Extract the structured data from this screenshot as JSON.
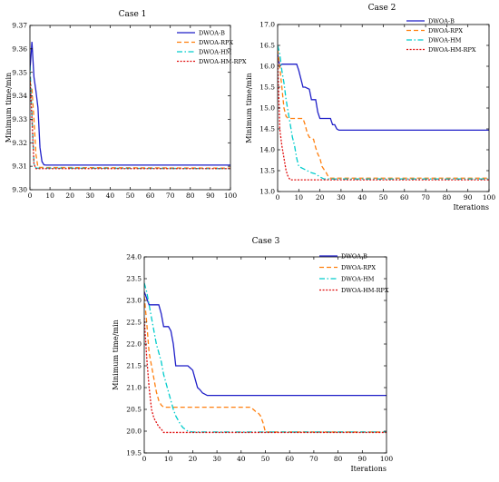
{
  "chart_data": [
    {
      "type": "line",
      "title": "Case 1",
      "xlabel": "",
      "ylabel": "Minimum time/min",
      "xlim": [
        0,
        100
      ],
      "ylim": [
        9.3,
        9.37
      ],
      "xticks": [
        0,
        10,
        20,
        30,
        40,
        50,
        60,
        70,
        80,
        90,
        100
      ],
      "yticks": [
        9.3,
        9.31,
        9.32,
        9.33,
        9.34,
        9.35,
        9.36,
        9.37
      ],
      "ytick_labels": [
        "9.30",
        "9.31",
        "9.32",
        "9.33",
        "9.34",
        "9.35",
        "9.36",
        "9.37"
      ],
      "grid": false,
      "legend": "top-right",
      "series": [
        {
          "name": "DWOA-B",
          "color": "#1f1fc8",
          "dash": "solid",
          "x": [
            0,
            1,
            2,
            3,
            4,
            5,
            6,
            7,
            8,
            100
          ],
          "y": [
            9.351,
            9.363,
            9.348,
            9.342,
            9.335,
            9.318,
            9.312,
            9.3106,
            9.3105,
            9.3105
          ]
        },
        {
          "name": "DWOA-RPX",
          "color": "#ff7f0e",
          "dash": "dashed",
          "x": [
            0,
            1,
            2,
            3,
            4,
            100
          ],
          "y": [
            9.346,
            9.343,
            9.33,
            9.315,
            9.3095,
            9.3092
          ]
        },
        {
          "name": "DWOA-HM",
          "color": "#00cccc",
          "dash": "dashdot",
          "x": [
            0,
            1,
            2,
            3,
            100
          ],
          "y": [
            9.353,
            9.332,
            9.311,
            9.3092,
            9.309
          ]
        },
        {
          "name": "DWOA-HM-RPX",
          "color": "#e01010",
          "dash": "dotted",
          "x": [
            0,
            1,
            2,
            3,
            100
          ],
          "y": [
            9.348,
            9.33,
            9.311,
            9.309,
            9.309
          ]
        }
      ]
    },
    {
      "type": "line",
      "title": "Case 2",
      "xlabel": "Iterations",
      "ylabel": "Minimum time/min",
      "xlim": [
        0,
        100
      ],
      "ylim": [
        13.0,
        17.0
      ],
      "xticks": [
        0,
        10,
        20,
        30,
        40,
        50,
        60,
        70,
        80,
        90,
        100
      ],
      "yticks": [
        13.0,
        13.5,
        14.0,
        14.5,
        15.0,
        15.5,
        16.0,
        16.5,
        17.0
      ],
      "ytick_labels": [
        "13.0",
        "13.5",
        "14.0",
        "14.5",
        "15.0",
        "15.5",
        "16.0",
        "16.5",
        "17.0"
      ],
      "grid": false,
      "legend": "top-right",
      "series": [
        {
          "name": "DWOA-B",
          "color": "#1f1fc8",
          "dash": "solid",
          "x": [
            0,
            1,
            2,
            9,
            10,
            12,
            13,
            15,
            16,
            18,
            19,
            20,
            21,
            25,
            26,
            27,
            28,
            29,
            100
          ],
          "y": [
            16.3,
            16.0,
            16.05,
            16.05,
            15.9,
            15.5,
            15.5,
            15.45,
            15.2,
            15.2,
            14.9,
            14.75,
            14.75,
            14.75,
            14.6,
            14.6,
            14.5,
            14.47,
            14.47
          ]
        },
        {
          "name": "DWOA-RPX",
          "color": "#ff7f0e",
          "dash": "dashed",
          "x": [
            0,
            1,
            2,
            3,
            4,
            5,
            12,
            13,
            14,
            15,
            17,
            18,
            19,
            20,
            21,
            23,
            24,
            25,
            100
          ],
          "y": [
            16.4,
            16.0,
            15.5,
            15.0,
            14.8,
            14.75,
            14.75,
            14.6,
            14.4,
            14.3,
            14.25,
            14.05,
            13.9,
            13.8,
            13.6,
            13.45,
            13.35,
            13.32,
            13.32
          ]
        },
        {
          "name": "DWOA-HM",
          "color": "#00cccc",
          "dash": "dashdot",
          "x": [
            0,
            1,
            2,
            3,
            4,
            5,
            6,
            7,
            8,
            9,
            10,
            12,
            14,
            16,
            18,
            20,
            22,
            100
          ],
          "y": [
            16.5,
            16.3,
            15.9,
            15.6,
            15.2,
            14.9,
            14.6,
            14.3,
            14.1,
            13.8,
            13.6,
            13.55,
            13.5,
            13.45,
            13.42,
            13.35,
            13.3,
            13.3
          ]
        },
        {
          "name": "DWOA-HM-RPX",
          "color": "#e01010",
          "dash": "dotted",
          "x": [
            0,
            1,
            2,
            3,
            4,
            5,
            6,
            100
          ],
          "y": [
            16.2,
            14.5,
            14.1,
            13.8,
            13.5,
            13.35,
            13.28,
            13.28
          ]
        }
      ]
    },
    {
      "type": "line",
      "title": "Case 3",
      "xlabel": "Iterations",
      "ylabel": "Minimum time/min",
      "xlim": [
        0,
        100
      ],
      "ylim": [
        19.5,
        24.0
      ],
      "xticks": [
        0,
        10,
        20,
        30,
        40,
        50,
        60,
        70,
        80,
        90,
        100
      ],
      "yticks": [
        19.5,
        20.0,
        20.5,
        21.0,
        21.5,
        22.0,
        22.5,
        23.0,
        23.5,
        24.0
      ],
      "ytick_labels": [
        "19.5",
        "20.0",
        "20.5",
        "21.0",
        "21.5",
        "22.0",
        "22.5",
        "23.0",
        "23.5",
        "24.0"
      ],
      "grid": false,
      "legend": "top-right",
      "series": [
        {
          "name": "DWOA-B",
          "color": "#1f1fc8",
          "dash": "solid",
          "x": [
            0,
            1,
            2,
            6,
            7,
            8,
            10,
            11,
            12,
            13,
            18,
            19,
            20,
            21,
            22,
            23,
            24,
            25,
            26,
            27,
            28,
            100
          ],
          "y": [
            23.2,
            23.05,
            22.9,
            22.9,
            22.7,
            22.4,
            22.4,
            22.3,
            22.0,
            21.5,
            21.5,
            21.45,
            21.4,
            21.2,
            21.0,
            20.95,
            20.88,
            20.85,
            20.82,
            20.82,
            20.82,
            20.82
          ]
        },
        {
          "name": "DWOA-RPX",
          "color": "#ff7f0e",
          "dash": "dashed",
          "x": [
            0,
            1,
            2,
            3,
            4,
            5,
            6,
            7,
            8,
            44,
            45,
            46,
            47,
            48,
            49,
            50,
            100
          ],
          "y": [
            23.1,
            22.5,
            21.8,
            21.5,
            21.2,
            20.9,
            20.7,
            20.6,
            20.55,
            20.55,
            20.5,
            20.45,
            20.42,
            20.35,
            20.2,
            19.98,
            19.98
          ]
        },
        {
          "name": "DWOA-HM",
          "color": "#00cccc",
          "dash": "dashdot",
          "x": [
            0,
            1,
            2,
            3,
            4,
            5,
            6,
            7,
            8,
            9,
            10,
            11,
            12,
            13,
            14,
            15,
            16,
            18,
            20,
            100
          ],
          "y": [
            23.4,
            23.2,
            22.9,
            22.6,
            22.3,
            22.0,
            21.8,
            21.6,
            21.3,
            21.1,
            20.9,
            20.7,
            20.5,
            20.35,
            20.25,
            20.15,
            20.08,
            20.0,
            19.98,
            19.98
          ]
        },
        {
          "name": "DWOA-HM-RPX",
          "color": "#e01010",
          "dash": "dotted",
          "x": [
            0,
            1,
            2,
            3,
            4,
            5,
            6,
            7,
            8,
            100
          ],
          "y": [
            22.6,
            21.7,
            21.0,
            20.5,
            20.3,
            20.2,
            20.1,
            20.05,
            19.97,
            19.97
          ]
        }
      ]
    }
  ]
}
